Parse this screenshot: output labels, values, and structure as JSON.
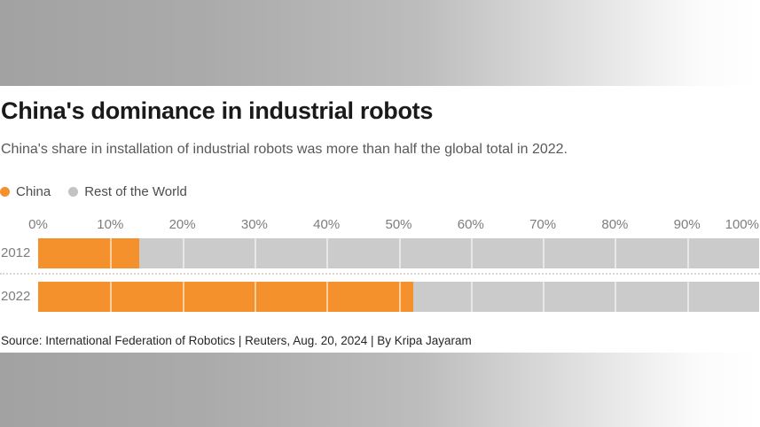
{
  "title": "China's dominance in industrial robots",
  "subtitle": "China's share in installation of industrial robots was more than half the global total in 2022.",
  "legend": {
    "items": [
      {
        "label": "China",
        "color": "#F5912D"
      },
      {
        "label": "Rest of the World",
        "color": "#C3C3C3"
      }
    ]
  },
  "source": "Source: International Federation of Robotics | Reuters, Aug. 20, 2024 | By Kripa Jayaram",
  "colors": {
    "china_orange": "#F5912D",
    "rest_gray": "#CBCBCB",
    "title_text": "#1A1A1A",
    "subtitle_text": "#595959",
    "axis_text": "#7D7D7D",
    "source_text": "#262626"
  },
  "chart_data": {
    "type": "bar",
    "orientation": "horizontal",
    "stacked": true,
    "title": "China's dominance in industrial robots",
    "subtitle": "China's share in installation of industrial robots was more than half the global total in 2022.",
    "categories": [
      "2012",
      "2022"
    ],
    "series": [
      {
        "name": "China",
        "color": "#F5912D",
        "values": [
          14,
          52
        ]
      },
      {
        "name": "Rest of the World",
        "color": "#CBCBCB",
        "values": [
          86,
          48
        ]
      }
    ],
    "unit": "percent",
    "xlim": [
      0,
      100
    ],
    "x_ticks": [
      "0%",
      "10%",
      "20%",
      "30%",
      "40%",
      "50%",
      "60%",
      "70%",
      "80%",
      "90%",
      "100%"
    ],
    "grid": "white vertical lines every 10% inside bars",
    "legend_position": "top-left"
  }
}
